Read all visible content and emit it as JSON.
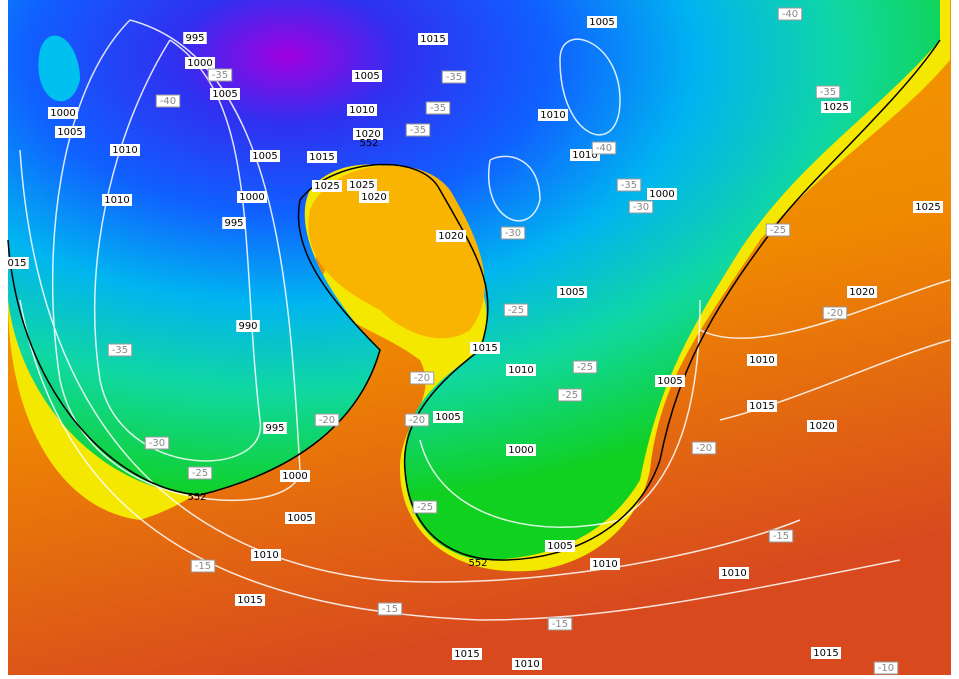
{
  "isobar_labels": [
    "995",
    "1000",
    "1005",
    "1000",
    "1005",
    "1010",
    "1005",
    "1000",
    "995",
    "1010",
    "990",
    "995",
    "1000",
    "1005",
    "1010",
    "1015",
    "1015",
    "1005",
    "1010",
    "1020",
    "1015",
    "1025",
    "1025",
    "1020",
    "1020",
    "1005",
    "1010",
    "1010",
    "1000",
    "1005",
    "1015",
    "1010",
    "1005",
    "1005",
    "1000",
    "1005",
    "1010",
    "1010",
    "1010",
    "1015",
    "1020",
    "1020",
    "1025",
    "1025",
    "1015",
    "1010",
    "1015",
    "015"
  ],
  "temperature_labels": [
    "-35",
    "-40",
    "-35",
    "-35",
    "-35",
    "-40",
    "-35",
    "-40",
    "-35",
    "-30",
    "-30",
    "-25",
    "-20",
    "-35",
    "-25",
    "-25",
    "-25",
    "-20",
    "-20",
    "-20",
    "-30",
    "-25",
    "-25",
    "-20",
    "-15",
    "-15",
    "-15",
    "-15",
    "-10"
  ],
  "height_labels": [
    "552",
    "552",
    "552"
  ]
}
